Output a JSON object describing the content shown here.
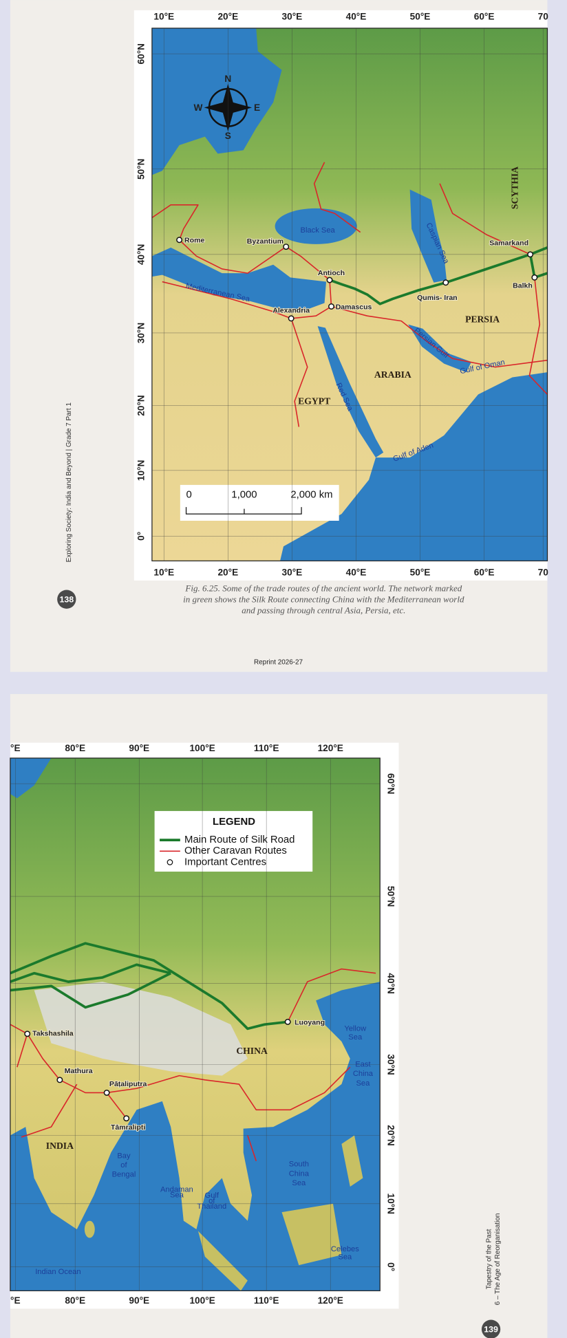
{
  "page_138": {
    "map": {
      "longitude_labels": [
        "10°E",
        "20°E",
        "30°E",
        "40°E",
        "50°E",
        "60°E",
        "70"
      ],
      "latitude_labels": [
        "60°N",
        "50°N",
        "40°N",
        "30°N",
        "20°N",
        "10°N",
        "0°"
      ],
      "compass": {
        "north": "N",
        "east": "E",
        "south": "S",
        "west": "W"
      },
      "scale_bar": [
        "0",
        "1,000",
        "2,000 km"
      ],
      "places": [
        "Rome",
        "Byzantium",
        "Antioch",
        "Alexandria",
        "Damascus",
        "Samarkand",
        "Qumis- Iran",
        "Balkh"
      ],
      "regions": [
        "EGYPT",
        "ARABIA",
        "PERSIA",
        "SCYTHIA"
      ],
      "water_bodies": [
        "Black Sea",
        "Caspian Sea",
        "Mediterranean Sea",
        "Red Sea",
        "Persian Gulf",
        "Gulf of Oman",
        "Gulf of Aden"
      ]
    },
    "caption": [
      "Fig. 6.25. Some of the trade routes of the ancient world. The network marked",
      "in green shows the Silk Route connecting China with the Mediterranean world",
      "and passing through central Asia, Persia, etc."
    ],
    "side_text": "Exploring Society: India and Beyond | Grade 7 Part 1",
    "page_number": "138",
    "footer": "Reprint 2026-27"
  },
  "page_139": {
    "map": {
      "longitude_labels": [
        "°E",
        "80°E",
        "90°E",
        "100°E",
        "110°E",
        "120°E"
      ],
      "latitude_labels": [
        "60°N",
        "50°N",
        "40°N",
        "30°N",
        "20°N",
        "10°N",
        "0°"
      ],
      "legend": {
        "title": "LEGEND",
        "items": [
          "Main Route of Silk Road",
          "Other Caravan Routes",
          "Important Centres"
        ]
      },
      "places": [
        "Takshashila",
        "Mathura",
        "Pāṭaliputra",
        "Tāmralipti",
        "Luoyang"
      ],
      "regions": [
        "CHINA",
        "INDIA"
      ],
      "water_bodies": [
        "Yellow Sea",
        "East China Sea",
        "Bay of Bengal",
        "South China Sea",
        "Andaman Sea",
        "Gulf of Thailand",
        "Celebes Sea",
        "Indian Ocean"
      ]
    },
    "side_text": [
      "Tapestry of the Past",
      "6 – The Age of Reorganisation"
    ],
    "page_number": "139"
  }
}
